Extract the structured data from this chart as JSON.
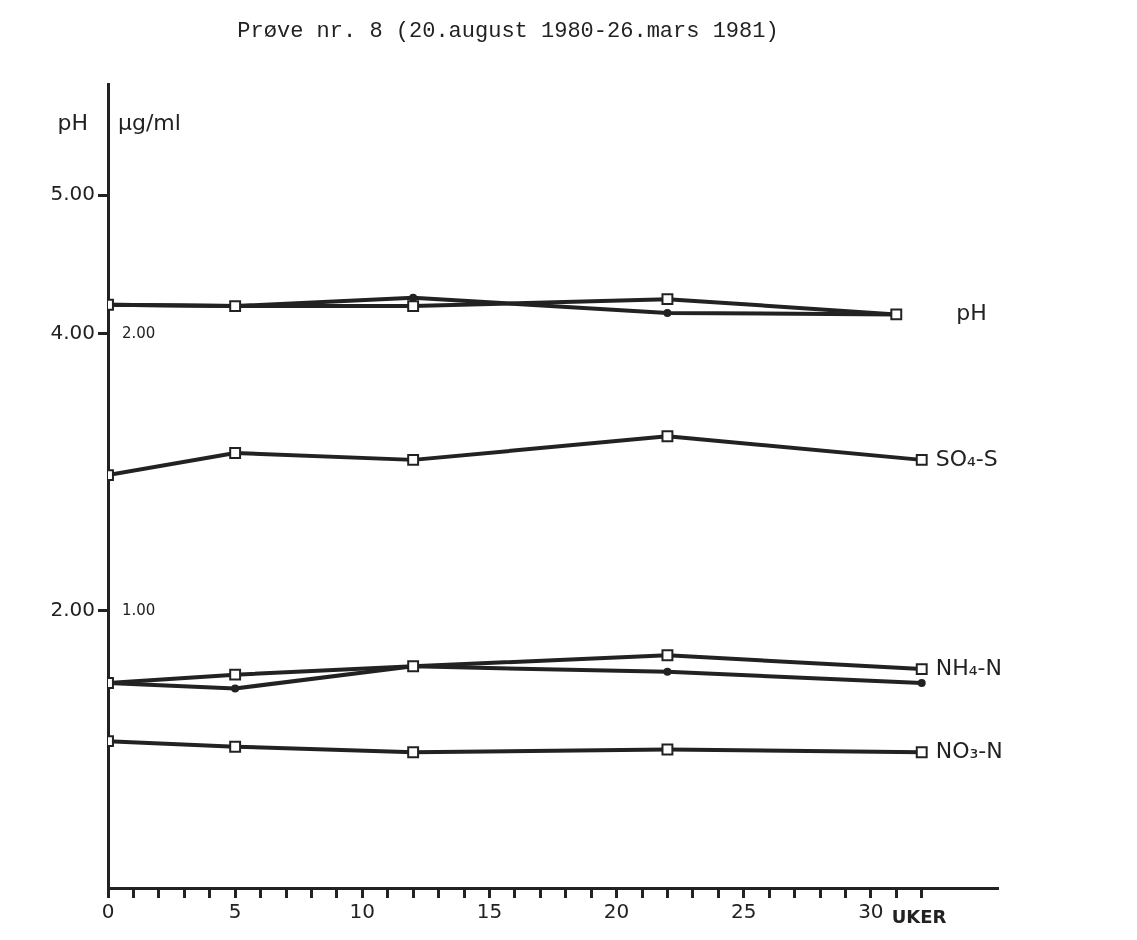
{
  "chart_data": {
    "type": "line",
    "title": "Prøve nr. 8 (20.august 1980-26.mars 1981)",
    "xlabel": "UKER",
    "ylabel": "pH",
    "y2label": "µg/ml",
    "x": [
      0,
      5,
      12,
      22,
      32
    ],
    "xlim": [
      0,
      35
    ],
    "xticks": [
      0,
      {
        "value": 1,
        "label": null
      },
      {
        "value": 2,
        "label": null
      },
      {
        "value": 3,
        "label": null
      },
      {
        "value": 4,
        "label": null
      },
      5,
      {
        "value": 6,
        "label": null
      },
      {
        "value": 7,
        "label": null
      },
      {
        "value": 8,
        "label": null
      },
      {
        "value": 9,
        "label": null
      },
      10,
      {
        "value": 11,
        "label": null
      },
      {
        "value": 12,
        "label": null
      },
      {
        "value": 13,
        "label": null
      },
      {
        "value": 14,
        "label": null
      },
      15,
      {
        "value": 16,
        "label": null
      },
      {
        "value": 17,
        "label": null
      },
      {
        "value": 18,
        "label": null
      },
      {
        "value": 19,
        "label": null
      },
      20,
      {
        "value": 21,
        "label": null
      },
      {
        "value": 22,
        "label": null
      },
      {
        "value": 23,
        "label": null
      },
      {
        "value": 24,
        "label": null
      },
      25,
      {
        "value": 26,
        "label": null
      },
      {
        "value": 27,
        "label": null
      },
      {
        "value": 28,
        "label": null
      },
      {
        "value": 29,
        "label": null
      },
      30,
      {
        "value": 31,
        "label": null
      },
      {
        "value": 32,
        "label": null
      }
    ],
    "ylim": [
      0,
      5.8
    ],
    "yticks": [
      {
        "value": 2,
        "label": "2.00"
      },
      {
        "value": 4,
        "label": "4.00"
      },
      {
        "value": 5,
        "label": "5.00"
      }
    ],
    "y2lim": [
      0,
      2.9
    ],
    "y2ticks": [
      {
        "value": 1,
        "label": "1.00"
      },
      {
        "value": 2,
        "label": "2.00"
      }
    ],
    "grid": false,
    "legend": false,
    "line_style": "solid",
    "series": [
      {
        "name": "pH",
        "color": "#222222",
        "marker": "square",
        "x": [
          0,
          5,
          12,
          22,
          31
        ],
        "values": [
          4.21,
          4.2,
          4.2,
          4.25,
          4.14
        ]
      },
      {
        "color": "#222222",
        "marker": "circle",
        "x": [
          0,
          5,
          12,
          22,
          31
        ],
        "values": [
          4.21,
          4.2,
          4.26,
          4.15,
          4.14
        ]
      },
      {
        "name": "SO₄-S",
        "color": "#222222",
        "marker": "square",
        "axis": "y2",
        "values": [
          1.49,
          1.57,
          1.545,
          1.63,
          1.545
        ]
      },
      {
        "name": "NH₄-N",
        "color": "#222222",
        "marker": "square",
        "axis": "y2",
        "values": [
          0.74,
          0.77,
          0.8,
          0.84,
          0.79
        ]
      },
      {
        "color": "#222222",
        "marker": "circle",
        "axis": "y2",
        "values": [
          0.74,
          0.72,
          0.8,
          0.78,
          0.74
        ]
      },
      {
        "name": "NO₃-N",
        "color": "#222222",
        "marker": "square",
        "axis": "y2",
        "values": [
          0.53,
          0.51,
          0.49,
          0.5,
          0.49
        ]
      }
    ]
  }
}
